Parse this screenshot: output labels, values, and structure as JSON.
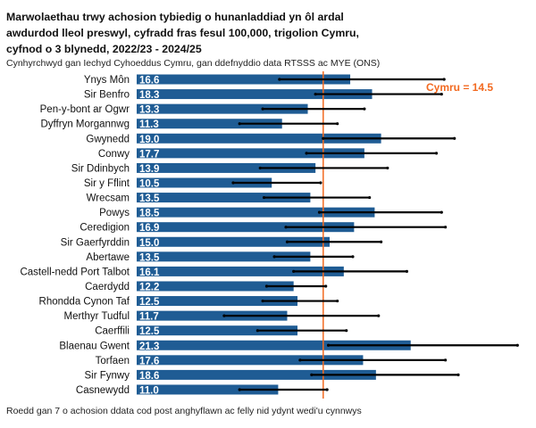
{
  "chart_data": {
    "type": "bar",
    "orientation": "horizontal",
    "title": "Marwolaethau trwy achosion tybiedig o hunanladdiad yn ôl ardal awdurdod lleol preswyl, cyfradd fras fesul 100,000, trigolion Cymru, cyfnod o 3 blynedd, 2022/23 - 2024/25",
    "subtitle": "Cynhyrchwyd gan Iechyd Cyhoeddus Cymru, gan ddefnyddio data RTSSS ac MYE (ONS)",
    "footnote": "Roedd gan 7 o achosion ddata cod post anghyflawn ac felly nid ydynt wedi'u cynnwys",
    "reference_line": {
      "label": "Cymru = 14.5",
      "value": 14.5
    },
    "categories": [
      "Ynys Môn",
      "Sir Benfro",
      "Pen-y-bont ar Ogwr",
      "Dyffryn Morgannwg",
      "Gwynedd",
      "Conwy",
      "Sir Ddinbych",
      "Sir y Fflint",
      "Wrecsam",
      "Powys",
      "Ceredigion",
      "Sir Gaerfyrddin",
      "Abertawe",
      "Castell-nedd Port Talbot",
      "Caerdydd",
      "Rhondda Cynon Taf",
      "Merthyr Tudful",
      "Caerffili",
      "Blaenau Gwent",
      "Torfaen",
      "Sir Fynwy",
      "Casnewydd"
    ],
    "values": [
      16.6,
      18.3,
      13.3,
      11.3,
      19.0,
      17.7,
      13.9,
      10.5,
      13.5,
      18.5,
      16.9,
      15.0,
      13.5,
      16.1,
      12.2,
      12.5,
      11.7,
      12.5,
      21.3,
      17.6,
      18.6,
      11.0
    ],
    "value_labels": [
      "16.6",
      "18.3",
      "13.3",
      "11.3",
      "19.0",
      "17.7",
      "13.9",
      "10.5",
      "13.5",
      "18.5",
      "16.9",
      "15.0",
      "13.5",
      "16.1",
      "12.2",
      "12.5",
      "11.7",
      "12.5",
      "21.3",
      "17.6",
      "18.6",
      "11.0"
    ],
    "ci_lower": [
      11.1,
      13.9,
      9.8,
      8.0,
      14.5,
      13.2,
      9.6,
      7.5,
      9.9,
      14.2,
      11.6,
      11.7,
      10.7,
      12.2,
      10.1,
      9.8,
      6.8,
      9.4,
      14.9,
      12.7,
      13.6,
      8.0
    ],
    "ci_upper": [
      23.9,
      23.7,
      17.7,
      15.6,
      24.7,
      23.3,
      19.5,
      14.3,
      18.1,
      23.7,
      24.0,
      19.0,
      16.8,
      21.0,
      14.7,
      15.6,
      18.8,
      16.3,
      29.6,
      24.0,
      25.0,
      14.8
    ],
    "xlim": [
      0,
      30
    ],
    "grid": false,
    "colors": {
      "bar": "#1f5c94",
      "reference": "#f26a21",
      "error": "#000000"
    }
  }
}
